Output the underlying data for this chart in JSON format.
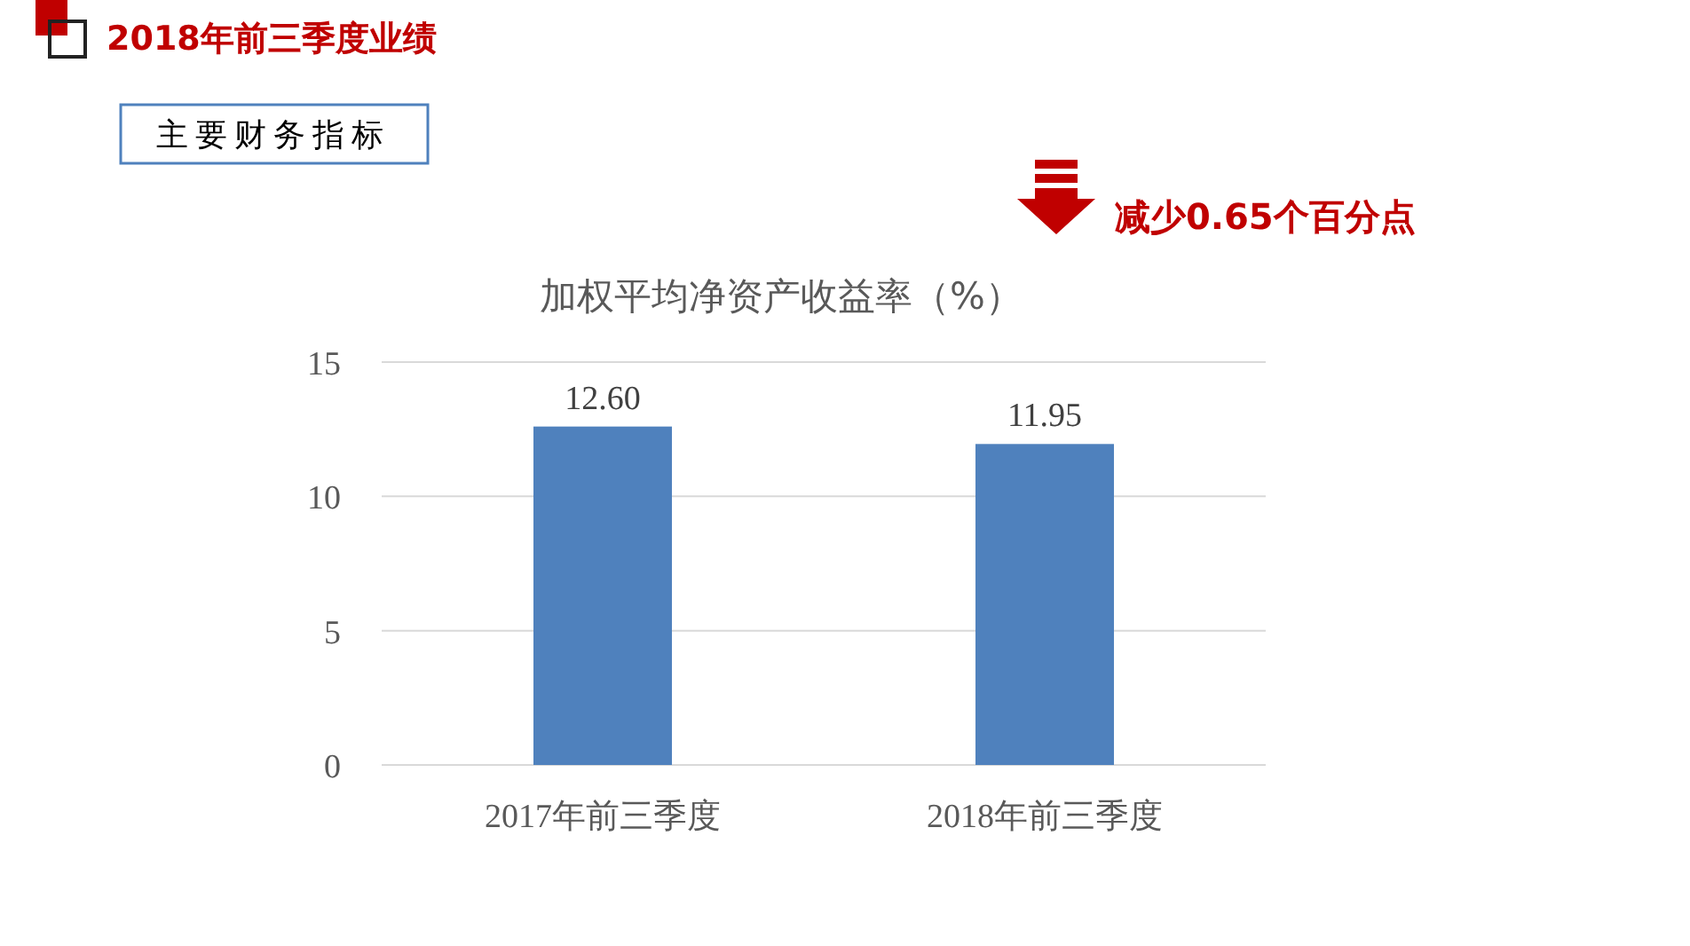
{
  "chart_data": {
    "type": "bar",
    "title": "加权平均净资产收益率（%）",
    "categories": [
      "2017年前三季度",
      "2018年前三季度"
    ],
    "values": [
      12.6,
      11.95
    ],
    "value_labels": [
      "12.60",
      "11.95"
    ],
    "color": "#4f81bd",
    "ylim": [
      0,
      15
    ],
    "yticks": [
      0,
      5,
      10,
      15
    ],
    "grid": "y",
    "annotations": [
      "2018年前三季度业绩",
      "主要财务指标",
      "减少0.65个百分点"
    ]
  }
}
